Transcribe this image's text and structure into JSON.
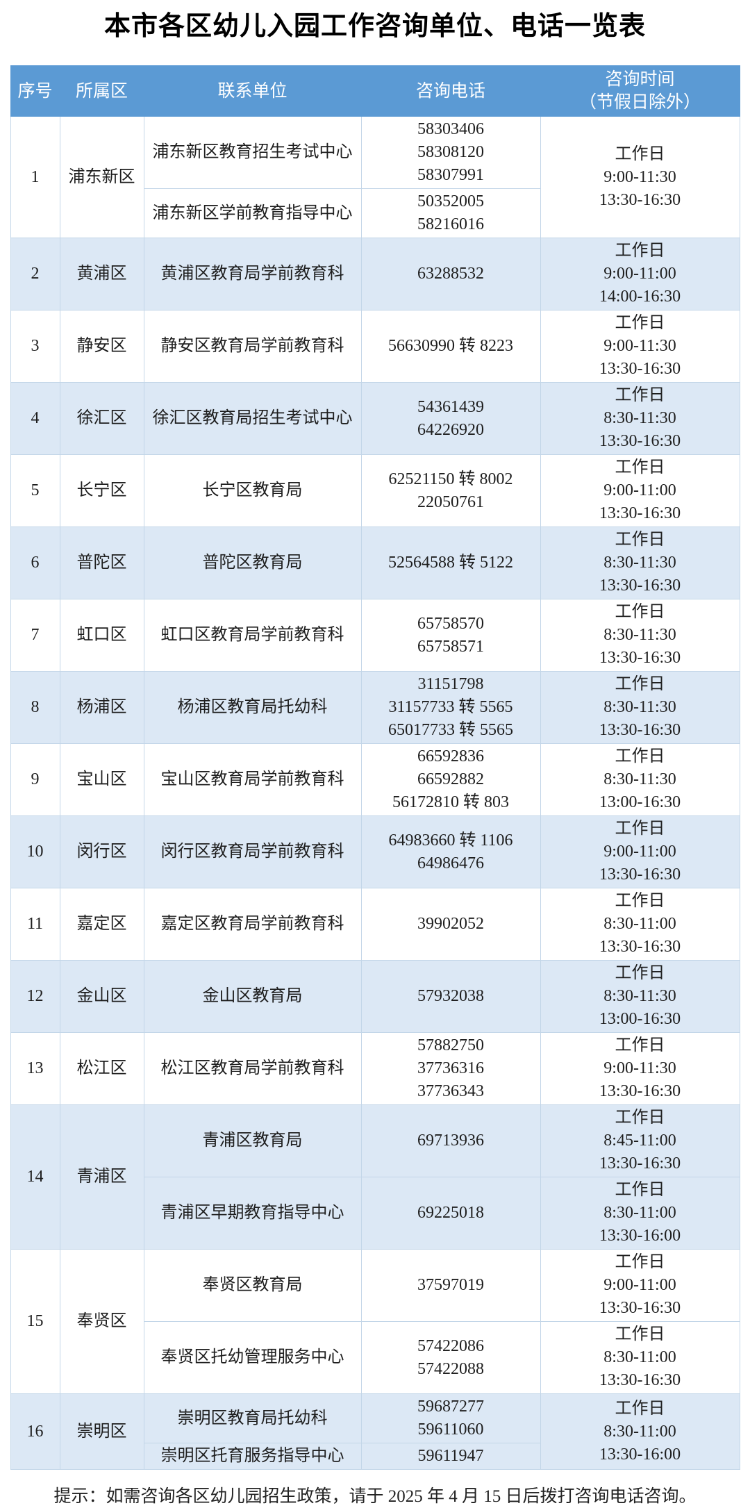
{
  "title": "本市各区幼儿入园工作咨询单位、电话一览表",
  "footer": "提示：如需咨询各区幼儿园招生政策，请于 2025 年 4 月 15 日后拨打咨询电话咨询。",
  "colors": {
    "header_bg": "#5b9ad4",
    "header_text": "#ffffff",
    "row_shade": "#dce8f5",
    "border": "#c3d6e8",
    "text": "#1e1e1e",
    "title_text": "#000000"
  },
  "table": {
    "columns": [
      "序号",
      "所属区",
      "联系单位",
      "咨询电话",
      "咨询时间",
      "（节假日除外）"
    ],
    "rows": [
      {
        "no": "1",
        "district": "浦东新区",
        "time_merged": true,
        "units": [
          {
            "name": "浦东新区教育招生考试中心",
            "phones": [
              "58303406",
              "58308120",
              "58307991"
            ]
          },
          {
            "name": "浦东新区学前教育指导中心",
            "phones": [
              "50352005",
              "58216016"
            ]
          }
        ],
        "times": [
          [
            "工作日",
            "9:00-11:30",
            "13:30-16:30"
          ]
        ]
      },
      {
        "no": "2",
        "district": "黄浦区",
        "time_merged": true,
        "units": [
          {
            "name": "黄浦区教育局学前教育科",
            "phones": [
              "63288532"
            ]
          }
        ],
        "times": [
          [
            "工作日",
            "9:00-11:00",
            "14:00-16:30"
          ]
        ]
      },
      {
        "no": "3",
        "district": "静安区",
        "time_merged": true,
        "units": [
          {
            "name": "静安区教育局学前教育科",
            "phones": [
              "56630990 转 8223"
            ]
          }
        ],
        "times": [
          [
            "工作日",
            "9:00-11:30",
            "13:30-16:30"
          ]
        ]
      },
      {
        "no": "4",
        "district": "徐汇区",
        "time_merged": true,
        "units": [
          {
            "name": "徐汇区教育局招生考试中心",
            "phones": [
              "54361439",
              "64226920"
            ]
          }
        ],
        "times": [
          [
            "工作日",
            "8:30-11:30",
            "13:30-16:30"
          ]
        ]
      },
      {
        "no": "5",
        "district": "长宁区",
        "time_merged": true,
        "units": [
          {
            "name": "长宁区教育局",
            "phones": [
              "62521150 转 8002",
              "22050761"
            ]
          }
        ],
        "times": [
          [
            "工作日",
            "9:00-11:00",
            "13:30-16:30"
          ]
        ]
      },
      {
        "no": "6",
        "district": "普陀区",
        "time_merged": true,
        "units": [
          {
            "name": "普陀区教育局",
            "phones": [
              "52564588 转 5122"
            ]
          }
        ],
        "times": [
          [
            "工作日",
            "8:30-11:30",
            "13:30-16:30"
          ]
        ]
      },
      {
        "no": "7",
        "district": "虹口区",
        "time_merged": true,
        "units": [
          {
            "name": "虹口区教育局学前教育科",
            "phones": [
              "65758570",
              "65758571"
            ]
          }
        ],
        "times": [
          [
            "工作日",
            "8:30-11:30",
            "13:30-16:30"
          ]
        ]
      },
      {
        "no": "8",
        "district": "杨浦区",
        "time_merged": true,
        "units": [
          {
            "name": "杨浦区教育局托幼科",
            "phones": [
              "31151798",
              "31157733 转 5565",
              "65017733 转 5565"
            ]
          }
        ],
        "times": [
          [
            "工作日",
            "8:30-11:30",
            "13:30-16:30"
          ]
        ]
      },
      {
        "no": "9",
        "district": "宝山区",
        "time_merged": true,
        "units": [
          {
            "name": "宝山区教育局学前教育科",
            "phones": [
              "66592836",
              "66592882",
              "56172810 转 803"
            ]
          }
        ],
        "times": [
          [
            "工作日",
            "8:30-11:30",
            "13:00-16:30"
          ]
        ]
      },
      {
        "no": "10",
        "district": "闵行区",
        "time_merged": true,
        "units": [
          {
            "name": "闵行区教育局学前教育科",
            "phones": [
              "64983660 转 1106",
              "64986476"
            ]
          }
        ],
        "times": [
          [
            "工作日",
            "9:00-11:00",
            "13:30-16:30"
          ]
        ]
      },
      {
        "no": "11",
        "district": "嘉定区",
        "time_merged": true,
        "units": [
          {
            "name": "嘉定区教育局学前教育科",
            "phones": [
              "39902052"
            ]
          }
        ],
        "times": [
          [
            "工作日",
            "8:30-11:00",
            "13:30-16:30"
          ]
        ]
      },
      {
        "no": "12",
        "district": "金山区",
        "time_merged": true,
        "units": [
          {
            "name": "金山区教育局",
            "phones": [
              "57932038"
            ]
          }
        ],
        "times": [
          [
            "工作日",
            "8:30-11:30",
            "13:00-16:30"
          ]
        ]
      },
      {
        "no": "13",
        "district": "松江区",
        "time_merged": true,
        "units": [
          {
            "name": "松江区教育局学前教育科",
            "phones": [
              "57882750",
              "37736316",
              "37736343"
            ]
          }
        ],
        "times": [
          [
            "工作日",
            "9:00-11:30",
            "13:30-16:30"
          ]
        ]
      },
      {
        "no": "14",
        "district": "青浦区",
        "time_merged": false,
        "units": [
          {
            "name": "青浦区教育局",
            "phones": [
              "69713936"
            ]
          },
          {
            "name": "青浦区早期教育指导中心",
            "phones": [
              "69225018"
            ]
          }
        ],
        "times": [
          [
            "工作日",
            "8:45-11:00",
            "13:30-16:30"
          ],
          [
            "工作日",
            "8:30-11:00",
            "13:30-16:00"
          ]
        ]
      },
      {
        "no": "15",
        "district": "奉贤区",
        "time_merged": false,
        "units": [
          {
            "name": "奉贤区教育局",
            "phones": [
              "37597019"
            ]
          },
          {
            "name": "奉贤区托幼管理服务中心",
            "phones": [
              "57422086",
              "57422088"
            ]
          }
        ],
        "times": [
          [
            "工作日",
            "9:00-11:00",
            "13:30-16:30"
          ],
          [
            "工作日",
            "8:30-11:00",
            "13:30-16:30"
          ]
        ]
      },
      {
        "no": "16",
        "district": "崇明区",
        "time_merged": true,
        "units": [
          {
            "name": "崇明区教育局托幼科",
            "phones": [
              "59687277",
              "59611060"
            ]
          },
          {
            "name": "崇明区托育服务指导中心",
            "phones": [
              "59611947"
            ]
          }
        ],
        "times": [
          [
            "工作日",
            "8:30-11:00",
            "13:30-16:00"
          ]
        ]
      }
    ]
  }
}
